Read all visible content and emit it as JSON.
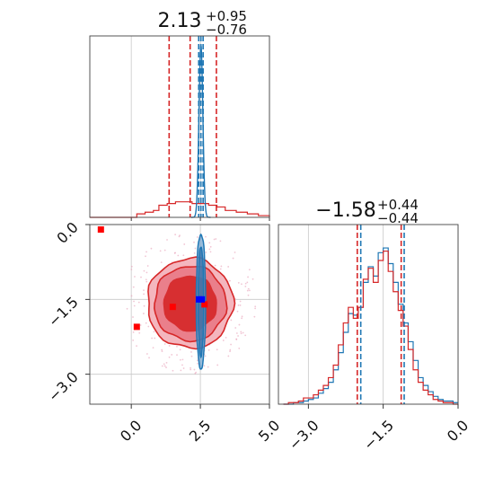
{
  "chart_data": {
    "type": "corner",
    "colors": {
      "red": "#d62728",
      "blue": "#1f77b4",
      "marker_red": "#ff0000",
      "marker_blue": "#0000ff"
    },
    "params": [
      {
        "title_value": "2.13",
        "title_plus": "+0.95",
        "title_minus": "−0.76",
        "range": [
          -1.5,
          5.0
        ]
      },
      {
        "title_value": "−1.58",
        "title_plus": "+0.44",
        "title_minus": "−0.44",
        "range": [
          -3.6,
          0.0
        ]
      }
    ],
    "ticks_x_param1": [
      {
        "value": 0.0,
        "label": "0.0"
      },
      {
        "value": 2.5,
        "label": "2.5"
      },
      {
        "value": 5.0,
        "label": "5.0"
      }
    ],
    "ticks_y_param2": [
      {
        "value": 0.0,
        "label": "0.0"
      },
      {
        "value": -1.5,
        "label": "−1.5"
      },
      {
        "value": -3.0,
        "label": "−3.0"
      }
    ],
    "ticks_x_param2": [
      {
        "value": -3.0,
        "label": "−3.0"
      },
      {
        "value": -1.5,
        "label": "−1.5"
      },
      {
        "value": 0.0,
        "label": "0.0"
      }
    ],
    "hist1": {
      "red_quantiles": [
        1.37,
        2.13,
        3.08
      ],
      "blue_quantiles": [
        2.44,
        2.52,
        2.6
      ],
      "red_counts": [
        {
          "x": -1.5,
          "y": 0.0
        },
        {
          "x": 0.2,
          "y": 0.02
        },
        {
          "x": 0.5,
          "y": 0.03
        },
        {
          "x": 0.8,
          "y": 0.04
        },
        {
          "x": 1.0,
          "y": 0.07
        },
        {
          "x": 1.3,
          "y": 0.08
        },
        {
          "x": 1.6,
          "y": 0.09
        },
        {
          "x": 1.9,
          "y": 0.09
        },
        {
          "x": 2.2,
          "y": 0.08
        },
        {
          "x": 2.5,
          "y": 0.08
        },
        {
          "x": 2.8,
          "y": 0.07
        },
        {
          "x": 3.1,
          "y": 0.06
        },
        {
          "x": 3.4,
          "y": 0.04
        },
        {
          "x": 3.8,
          "y": 0.03
        },
        {
          "x": 4.2,
          "y": 0.02
        },
        {
          "x": 4.6,
          "y": 0.01
        },
        {
          "x": 5.0,
          "y": 0.0
        }
      ],
      "blue_peak": {
        "center": 2.52,
        "width": 0.07,
        "height": 1.0
      }
    },
    "hist2": {
      "red_quantiles": [
        -2.02,
        -1.58,
        -1.14
      ],
      "blue_quantiles": [
        -1.95,
        -1.54,
        -1.08
      ],
      "bins": [
        -3.45,
        -3.35,
        -3.25,
        -3.15,
        -3.05,
        -2.95,
        -2.85,
        -2.75,
        -2.65,
        -2.55,
        -2.45,
        -2.35,
        -2.25,
        -2.15,
        -2.05,
        -1.95,
        -1.85,
        -1.75,
        -1.65,
        -1.55,
        -1.45,
        -1.35,
        -1.25,
        -1.15,
        -1.05,
        -0.95,
        -0.85,
        -0.75,
        -0.65,
        -0.55,
        -0.45,
        -0.35,
        -0.25,
        -0.15,
        -0.05
      ],
      "red_counts": [
        0.0,
        0.01,
        0.01,
        0.02,
        0.04,
        0.04,
        0.06,
        0.09,
        0.12,
        0.17,
        0.25,
        0.38,
        0.52,
        0.62,
        0.55,
        0.62,
        0.8,
        0.87,
        0.78,
        0.92,
        0.98,
        0.85,
        0.72,
        0.6,
        0.5,
        0.35,
        0.22,
        0.14,
        0.09,
        0.06,
        0.03,
        0.02,
        0.01,
        0.01,
        0.0
      ],
      "blue_counts": [
        0.0,
        0.0,
        0.01,
        0.01,
        0.02,
        0.03,
        0.04,
        0.07,
        0.1,
        0.14,
        0.22,
        0.33,
        0.46,
        0.58,
        0.57,
        0.62,
        0.78,
        0.88,
        0.82,
        0.97,
        1.0,
        0.9,
        0.78,
        0.64,
        0.52,
        0.4,
        0.28,
        0.17,
        0.12,
        0.08,
        0.05,
        0.03,
        0.02,
        0.02,
        0.01
      ]
    },
    "joint": {
      "red_center": [
        2.13,
        -1.58
      ],
      "red_contour_halfwidths": [
        [
          1.55,
          0.9
        ],
        [
          1.3,
          0.75
        ],
        [
          0.95,
          0.55
        ]
      ],
      "blue_center": [
        2.52,
        -1.54
      ],
      "blue_contour_halfwidths": [
        [
          0.17,
          1.35
        ],
        [
          0.1,
          1.1
        ]
      ],
      "red_markers": [
        [
          -1.1,
          -0.1
        ],
        [
          0.2,
          -2.05
        ],
        [
          1.5,
          -1.65
        ],
        [
          2.65,
          -1.6
        ]
      ],
      "blue_markers": [
        [
          2.45,
          -1.5
        ],
        [
          2.55,
          -1.5
        ]
      ]
    }
  }
}
